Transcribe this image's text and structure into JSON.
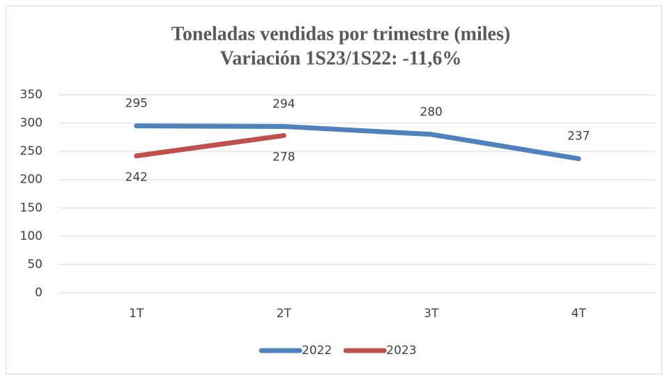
{
  "chart_data": {
    "type": "line",
    "title": "Toneladas vendidas por trimestre (miles)",
    "subtitle": "Variación 1S23/1S22: -11,6%",
    "categories": [
      "1T",
      "2T",
      "3T",
      "4T"
    ],
    "series": [
      {
        "name": "2022",
        "color": "#4f81bd",
        "values": [
          295,
          294,
          280,
          237
        ],
        "labels": "above"
      },
      {
        "name": "2023",
        "color": "#c0504d",
        "values": [
          242,
          278,
          null,
          null
        ],
        "labels": "below"
      }
    ],
    "ylim": [
      0,
      350
    ],
    "yticks": [
      0,
      50,
      100,
      150,
      200,
      250,
      300,
      350
    ],
    "grid": true,
    "legend": "bottom"
  }
}
